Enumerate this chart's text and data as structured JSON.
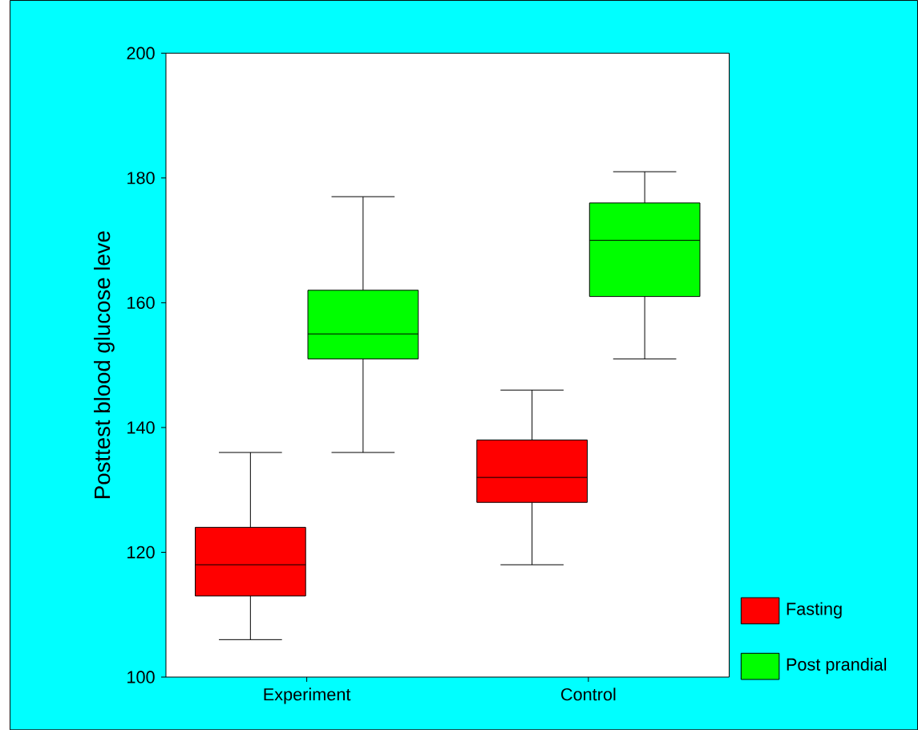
{
  "chart_data": {
    "type": "box",
    "ylabel": "Posttest blood glucose leve",
    "categories": [
      "Experiment",
      "Control"
    ],
    "series": [
      {
        "name": "Fasting",
        "color": "#ff0000",
        "boxes": [
          {
            "low": 106,
            "q1": 113,
            "median": 118,
            "q3": 124,
            "high": 136
          },
          {
            "low": 118,
            "q1": 128,
            "median": 132,
            "q3": 138,
            "high": 146
          }
        ]
      },
      {
        "name": "Post prandial",
        "color": "#00ff00",
        "boxes": [
          {
            "low": 136,
            "q1": 151,
            "median": 155,
            "q3": 162,
            "high": 177
          },
          {
            "low": 151,
            "q1": 161,
            "median": 170,
            "q3": 176,
            "high": 181
          }
        ]
      }
    ],
    "ylim": [
      100,
      200
    ],
    "yticks": [
      100,
      120,
      140,
      160,
      180,
      200
    ],
    "legend": "bottom right"
  }
}
